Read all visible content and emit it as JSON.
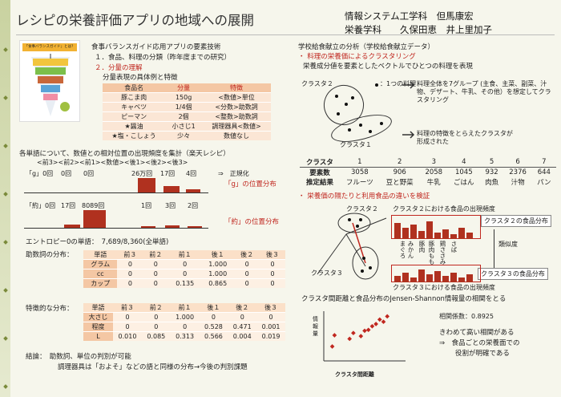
{
  "title": "レシピの栄養評価アプリの地域への展開",
  "authors": {
    "line1": "情報システム工学科　但馬康宏",
    "line2": "栄養学科　　久保田恵　井上里加子"
  },
  "left": {
    "heading": "食事バランスガイド応用アプリの要素技術",
    "item1": "１．食品、料理の分類（昨年度までの研究）",
    "item2": "２．分量の理解",
    "sub": "分量表現の具体例と特徴",
    "thumb_title": "「食事バランスガイド」とは？",
    "food_table": {
      "headers": [
        "食品名",
        "分量",
        "特徴"
      ],
      "rows": [
        [
          "豚こま肉",
          "150g",
          "<数値>単位"
        ],
        [
          "キャベツ",
          "1/4個",
          "<分数>助数詞"
        ],
        [
          "ピーマン",
          "2個",
          "<整数>助数詞"
        ],
        [
          "★醤油",
          "小さじ1",
          "調理器具<数値>"
        ],
        [
          "★塩・こしょう",
          "少々",
          "数値なし"
        ]
      ]
    },
    "count_title": "各単語について、数値との相対位置の出現頻度を集計（楽天レシピ）",
    "count_header": "<前3><前2><前1><数値><後1><後2><後3>",
    "g_counts": [
      "「g」0回",
      "0回",
      "0回",
      "26万回",
      "17回",
      "4回"
    ],
    "g_result_prefix": "⇒　正規化",
    "g_result": "「g」の位置分布",
    "yaku_counts": [
      "「約」0回",
      "17回",
      "8089回",
      "1回",
      "3回",
      "2回"
    ],
    "yaku_result": "「約」の位置分布",
    "entropy": "エントロピー0の単語：　7,689/8,360(全単語)",
    "josuushi_label": "助数詞の分布：",
    "tokucho_label": "特徴的な分布：",
    "dist_headers": [
      "単語",
      "前３",
      "前２",
      "前１",
      "後１",
      "後２",
      "後３"
    ],
    "dist1": [
      [
        "グラム",
        "0",
        "0",
        "0",
        "1.000",
        "0",
        "0"
      ],
      [
        "cc",
        "0",
        "0",
        "0",
        "1.000",
        "0",
        "0"
      ],
      [
        "カップ",
        "0",
        "0",
        "0.135",
        "0.865",
        "0",
        "0"
      ]
    ],
    "dist2": [
      [
        "大さじ",
        "0",
        "0",
        "1.000",
        "0",
        "0",
        "0"
      ],
      [
        "程度",
        "0",
        "0",
        "0",
        "0.528",
        "0.471",
        "0.001"
      ],
      [
        "L",
        "0.010",
        "0.085",
        "0.313",
        "0.566",
        "0.004",
        "0.019"
      ]
    ],
    "conclusion1": "結論：　助数詞、単位の判別が可能",
    "conclusion2": "調理器具は「およそ」などの語と同様の分布→今後の判別課題"
  },
  "right": {
    "heading": "学校給食献立の分析（学校給食献立データ）",
    "sub1": "・ 料理の栄養価によるクラスタリング",
    "sub1b": "栄養成分値を要素としたベクトルでひとつの料理を表現",
    "cluster2": "クラスタ２",
    "cluster1": "クラスタ１",
    "one_dish": "：1つの料理",
    "group_note": "料理全体を7グループ\n(主食、主菜、副菜、汁物、デザート、牛乳、その他）を想定してクラスタリング",
    "feature_note": "料理の特徴をとらえたクラスタが\n形成された",
    "cluster_table": {
      "row1": [
        "クラスタ",
        "1",
        "2",
        "3",
        "4",
        "5",
        "6",
        "7"
      ],
      "row2": [
        "要素数",
        "3058",
        "906",
        "2058",
        "1045",
        "932",
        "2376",
        "644"
      ],
      "row3": [
        "推定結果",
        "フルーツ",
        "豆と野菜",
        "牛乳",
        "ごはん",
        "肉魚",
        "汁物",
        "パン"
      ]
    },
    "sub2": "・ 栄養価の隔たりと利用食品の違いを検証",
    "freq2": "クラスタ２における食品の出現頻度",
    "dist2": "クラスタ２の食品分布",
    "similarity": "類似度",
    "dist3": "クラスタ３の食品分布",
    "freq3": "クラスタ３における食品の出現頻度",
    "c2": "クラスタ２",
    "c3": "クラスタ３",
    "foods": [
      "まぐろ",
      "みかん",
      "豚肉",
      "豚肉もも",
      "鶏ささみ",
      "さば"
    ],
    "jsd_title": "クラスタ間距離と食品分布のJensen-Shannon情報量の相関をとる",
    "corr": "相関係数：0.8925",
    "y_axis": "情報量",
    "x_axis": "クラスタ間距離",
    "result1": "きわめて高い相関がある",
    "result2": "⇒　食品ごとの栄養面での",
    "result3": "役割が明確である"
  },
  "chart_data": {
    "type": "scatter",
    "xlabel": "クラスタ間距離",
    "ylabel": "情報量",
    "points": [
      [
        0.07,
        0.25
      ],
      [
        0.1,
        0.5
      ],
      [
        0.3,
        0.42
      ],
      [
        0.35,
        0.55
      ],
      [
        0.45,
        0.48
      ],
      [
        0.5,
        0.6
      ],
      [
        0.55,
        0.62
      ],
      [
        0.6,
        0.7
      ],
      [
        0.65,
        0.75
      ],
      [
        0.7,
        0.85
      ],
      [
        0.75,
        0.8
      ],
      [
        0.8,
        0.92
      ]
    ]
  },
  "colors": {
    "accent": "#c0271f",
    "bar": "#b0311f",
    "table": "#f4c7a4",
    "sidebar": "#c9d2a0"
  }
}
